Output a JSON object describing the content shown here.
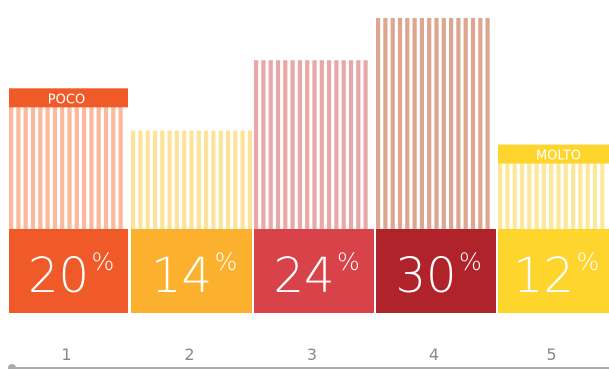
{
  "chart_data": {
    "type": "bar",
    "categories": [
      "1",
      "2",
      "3",
      "4",
      "5"
    ],
    "values": [
      20,
      14,
      24,
      30,
      12
    ],
    "percent_sign": "%",
    "annotations": {
      "low_label": "POCO",
      "high_label": "MOLTO",
      "low_index": 0,
      "high_index": 4
    },
    "xlabel": "",
    "ylabel": "",
    "grid": false,
    "legend": "none"
  },
  "colors": {
    "box": [
      "#f05a28",
      "#fbb12d",
      "#d8434a",
      "#b0232a",
      "#fed52c"
    ],
    "stripe": [
      "#fbb89b",
      "#fde39a",
      "#e9a7a8",
      "#dca690",
      "#fde89a"
    ],
    "tag": "#f05a28",
    "tag_high": "#fed52c",
    "axis": "#aaaaaa",
    "tick_text": "#888888"
  }
}
